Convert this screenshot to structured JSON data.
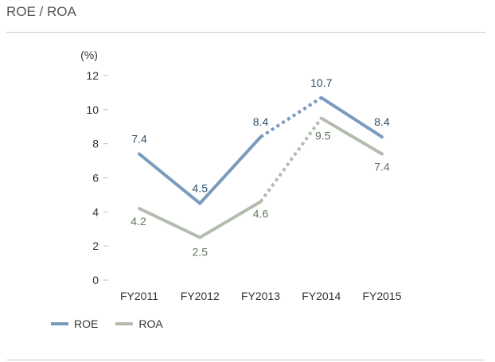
{
  "page": {
    "title": "ROE / ROA"
  },
  "chart_data": {
    "type": "line",
    "unit_label": "(%)",
    "categories": [
      "FY2011",
      "FY2012",
      "FY2013",
      "FY2014",
      "FY2015"
    ],
    "ylim": [
      0,
      12
    ],
    "yticks": [
      0,
      2,
      4,
      6,
      8,
      10,
      12
    ],
    "legend_position": "bottom-left",
    "grid": false,
    "series": [
      {
        "name": "ROE",
        "values": [
          7.4,
          4.5,
          8.4,
          10.7,
          8.4
        ],
        "labels": [
          "7.4",
          "4.5",
          "8.4",
          "10.7",
          "8.4"
        ],
        "color": "#7b9bbe",
        "label_color": "#2d4f6b",
        "dashed_segments": [
          2
        ]
      },
      {
        "name": "ROA",
        "values": [
          4.2,
          2.5,
          4.6,
          9.5,
          7.4
        ],
        "labels": [
          "4.2",
          "2.5",
          "4.6",
          "9.5",
          "7.4"
        ],
        "color": "#b3bcad",
        "label_color": "#5f7a5a",
        "dashed_segments": [
          2
        ]
      }
    ]
  }
}
